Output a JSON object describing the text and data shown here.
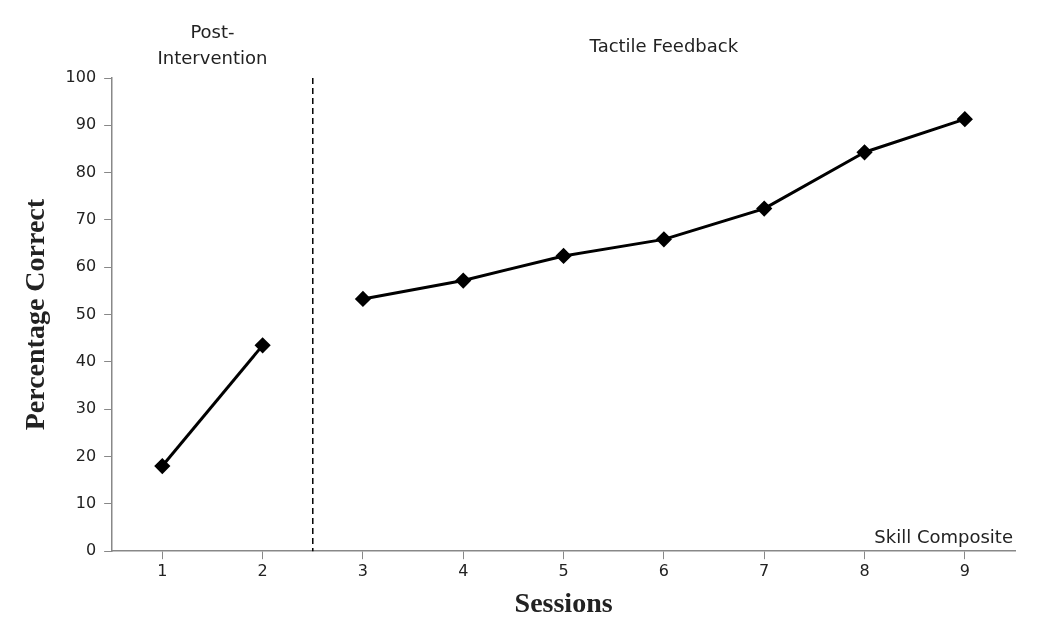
{
  "chart_data": {
    "type": "line",
    "xlabel": "Sessions",
    "ylabel": "Percentage Correct",
    "xlim": [
      0.5,
      9.5
    ],
    "xticks": [
      1,
      2,
      3,
      4,
      5,
      6,
      7,
      8,
      9
    ],
    "ylim": [
      0,
      100
    ],
    "yticks": [
      0,
      10,
      20,
      30,
      40,
      50,
      60,
      70,
      80,
      90,
      100
    ],
    "series": [
      {
        "color": "#000000",
        "x": [
          1,
          2
        ],
        "values": [
          18,
          43.5
        ]
      },
      {
        "color": "#000000",
        "x": [
          3,
          4,
          5,
          6,
          7,
          8,
          9
        ],
        "values": [
          53.3,
          57.2,
          62.4,
          65.9,
          72.4,
          84.3,
          91.3
        ]
      }
    ],
    "ref_lines": [
      {
        "axis": "x",
        "value": 2.5,
        "line_style": "dashed",
        "color": "#000000"
      }
    ],
    "annotations": [
      "Post-\nIntervention",
      "Tactile Feedback",
      "Skill Composite"
    ],
    "marker": "diamond",
    "line_style": "solid",
    "grid": false,
    "legend": false
  }
}
